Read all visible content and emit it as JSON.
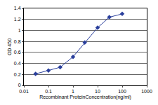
{
  "chart_data": {
    "type": "line",
    "x": [
      0.03,
      0.1,
      0.3,
      1,
      3,
      10,
      30,
      100
    ],
    "values": [
      0.21,
      0.27,
      0.33,
      0.52,
      0.78,
      1.05,
      1.24,
      1.3
    ],
    "color": "#2a3f9c",
    "marker": "diamond",
    "line_style": "solid",
    "xlabel": "Recombinant ProteinConcentration(ng/ml)",
    "ylabel": "OD 450",
    "log": "x",
    "xlim": [
      0.01,
      1000
    ],
    "xticks": [
      0.01,
      0.1,
      1,
      10,
      100,
      1000
    ],
    "ylim": [
      0,
      1.4
    ],
    "yticks": [
      0,
      0.2,
      0.4,
      0.6,
      0.8,
      1,
      1.2,
      1.4
    ],
    "grid": true
  }
}
